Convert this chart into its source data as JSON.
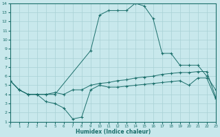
{
  "xlabel": "Humidex (Indice chaleur)",
  "bg_color": "#c8e8ec",
  "line_color": "#1a6e6a",
  "grid_color": "#a8d0d5",
  "xlim": [
    0,
    23
  ],
  "ylim": [
    1,
    14
  ],
  "xticks": [
    0,
    1,
    2,
    3,
    4,
    5,
    6,
    7,
    8,
    9,
    10,
    11,
    12,
    13,
    14,
    15,
    16,
    17,
    18,
    19,
    20,
    21,
    22,
    23
  ],
  "yticks": [
    1,
    2,
    3,
    4,
    5,
    6,
    7,
    8,
    9,
    10,
    11,
    12,
    13,
    14
  ],
  "series": [
    {
      "x": [
        0,
        1,
        2,
        3,
        4,
        5,
        9,
        10,
        11,
        12,
        13,
        14,
        15,
        16,
        17,
        18,
        19,
        20,
        21,
        22,
        23
      ],
      "y": [
        5.5,
        4.5,
        4.0,
        4.0,
        4.0,
        4.0,
        8.8,
        12.7,
        13.2,
        13.2,
        13.2,
        14.0,
        13.7,
        12.3,
        8.5,
        8.5,
        7.2,
        7.2,
        7.2,
        6.0,
        4.5
      ]
    },
    {
      "x": [
        0,
        1,
        2,
        3,
        4,
        5,
        6,
        7,
        8,
        9,
        10,
        11,
        12,
        13,
        14,
        15,
        16,
        17,
        18,
        19,
        20,
        21,
        22,
        23
      ],
      "y": [
        5.5,
        4.5,
        4.0,
        4.0,
        4.0,
        4.2,
        4.0,
        4.5,
        4.5,
        5.0,
        5.2,
        5.3,
        5.5,
        5.6,
        5.8,
        5.9,
        6.0,
        6.2,
        6.3,
        6.4,
        6.4,
        6.5,
        6.5,
        3.7
      ]
    },
    {
      "x": [
        0,
        1,
        2,
        3,
        4,
        5,
        6,
        7,
        8,
        9,
        10,
        11,
        12,
        13,
        14,
        15,
        16,
        17,
        18,
        19,
        20,
        21,
        22,
        23
      ],
      "y": [
        5.5,
        4.5,
        4.0,
        4.0,
        3.2,
        3.0,
        2.5,
        1.3,
        1.5,
        4.5,
        5.0,
        4.8,
        4.8,
        4.9,
        5.0,
        5.1,
        5.2,
        5.3,
        5.4,
        5.5,
        5.0,
        5.8,
        5.8,
        3.5
      ]
    }
  ]
}
